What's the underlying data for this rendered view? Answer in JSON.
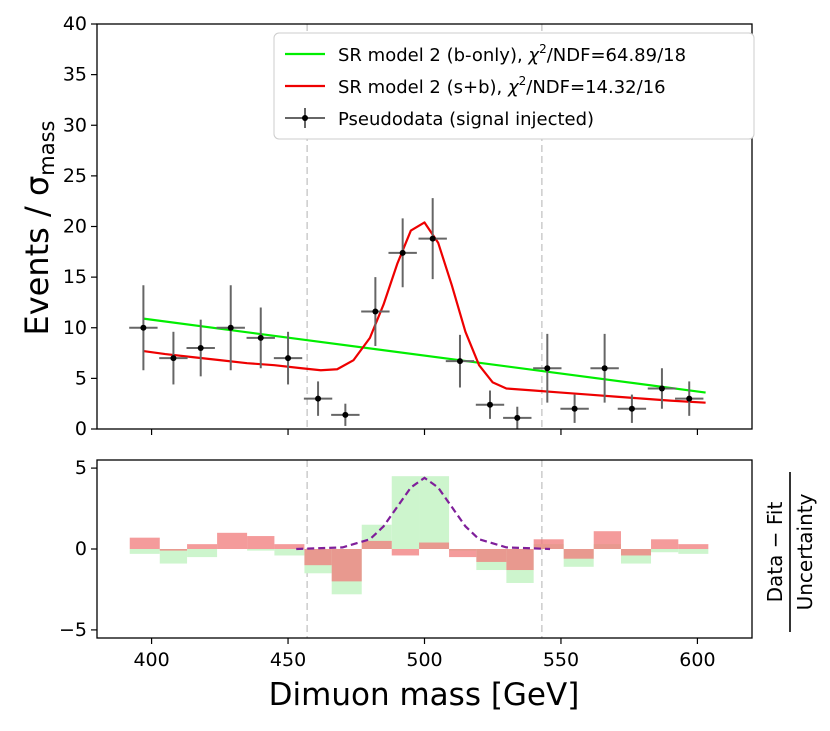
{
  "chart_data": [
    {
      "type": "line",
      "panel": "main",
      "ylabel": "Events / σ",
      "ylabel_sub": "mass",
      "xlim": [
        380,
        620
      ],
      "ylim": [
        0,
        40
      ],
      "x_ticks": [
        400,
        450,
        500,
        550,
        600
      ],
      "y_ticks": [
        0,
        5,
        10,
        15,
        20,
        25,
        30,
        35,
        40
      ],
      "vlines": [
        457,
        543
      ],
      "legend": {
        "placement": "top-right",
        "entries": [
          {
            "label_pre": "SR model 2 (b-only), ",
            "chi": "χ",
            "sup": "2",
            "label_post": "/NDF=64.89/18",
            "color": "#00ee00"
          },
          {
            "label_pre": "SR model 2 (s+b), ",
            "chi": "χ",
            "sup": "2",
            "label_post": "/NDF=14.32/16",
            "color": "#ee0000"
          },
          {
            "label": "Pseudodata (signal injected)",
            "color": "#000000"
          }
        ]
      },
      "series": [
        {
          "kind": "line",
          "color": "#00ee00",
          "x": [
            397,
            603
          ],
          "y": [
            10.9,
            3.6
          ]
        },
        {
          "kind": "line",
          "color": "#ee0000",
          "x": [
            397,
            405,
            415,
            425,
            435,
            445,
            455,
            462,
            468,
            474,
            480,
            485,
            490,
            495,
            500,
            505,
            510,
            515,
            520,
            525,
            530,
            540,
            550,
            560,
            570,
            580,
            590,
            603
          ],
          "y": [
            7.7,
            7.4,
            7.1,
            6.8,
            6.5,
            6.3,
            6.0,
            5.8,
            5.9,
            6.8,
            9.0,
            12.3,
            16.3,
            19.6,
            20.4,
            18.4,
            14.2,
            9.6,
            6.3,
            4.6,
            4.0,
            3.8,
            3.6,
            3.4,
            3.2,
            3.0,
            2.8,
            2.6
          ]
        },
        {
          "kind": "errorbar",
          "color": "#000000",
          "xerr": 5.2,
          "x": [
            397,
            408,
            418,
            429,
            440,
            450,
            461,
            471,
            482,
            492,
            503,
            513,
            524,
            534,
            545,
            555,
            566,
            576,
            587,
            597
          ],
          "y": [
            10,
            7,
            8,
            10,
            9,
            7,
            3,
            1.4,
            11.6,
            17.4,
            18.8,
            6.7,
            2.4,
            1.1,
            6,
            2,
            6,
            2,
            4,
            3
          ],
          "yerr": [
            4.2,
            2.6,
            2.8,
            4.2,
            3.0,
            2.6,
            1.7,
            1.1,
            3.4,
            3.4,
            4.0,
            2.6,
            1.4,
            1.1,
            3.4,
            1.4,
            3.4,
            1.4,
            2.0,
            1.7
          ]
        }
      ]
    },
    {
      "type": "bar",
      "panel": "residual",
      "ylabel_num": "Data − Fit",
      "ylabel_den": "Uncertainty",
      "xlabel": "Dimuon mass [GeV]",
      "xlim": [
        380,
        620
      ],
      "ylim": [
        -5.5,
        5.5
      ],
      "y_ticks": [
        -5,
        0,
        5
      ],
      "x_ticks": [
        400,
        450,
        500,
        550,
        600
      ],
      "vlines": [
        457,
        543
      ],
      "bin_edges": [
        392,
        403,
        413,
        424,
        435,
        445,
        456,
        466,
        477,
        488,
        498,
        509,
        519,
        530,
        540,
        551,
        562,
        572,
        583,
        593,
        604
      ],
      "series": [
        {
          "name_color": "#cdf5cd",
          "values": [
            -0.3,
            -0.9,
            -0.5,
            0.0,
            -0.1,
            -0.4,
            -1.5,
            -2.8,
            1.5,
            4.5,
            4.5,
            -0.1,
            -1.3,
            -2.1,
            0.3,
            -1.1,
            0.3,
            -0.9,
            -0.2,
            -0.3
          ]
        },
        {
          "name_color": "#f07a7a",
          "values": [
            0.7,
            -0.1,
            0.3,
            1.0,
            0.8,
            0.3,
            -1.0,
            -2.0,
            0.5,
            -0.4,
            0.4,
            -0.5,
            -0.8,
            -1.3,
            0.6,
            -0.6,
            1.1,
            -0.4,
            0.6,
            0.3
          ]
        },
        {
          "kind": "dashed-line",
          "color": "#7f1f9a",
          "x": [
            453,
            470,
            480,
            485,
            490,
            495,
            500,
            505,
            510,
            515,
            520,
            530,
            546
          ],
          "y": [
            0.0,
            0.1,
            0.6,
            1.4,
            2.6,
            3.8,
            4.4,
            3.8,
            2.6,
            1.4,
            0.6,
            0.1,
            0.0
          ]
        }
      ]
    }
  ]
}
